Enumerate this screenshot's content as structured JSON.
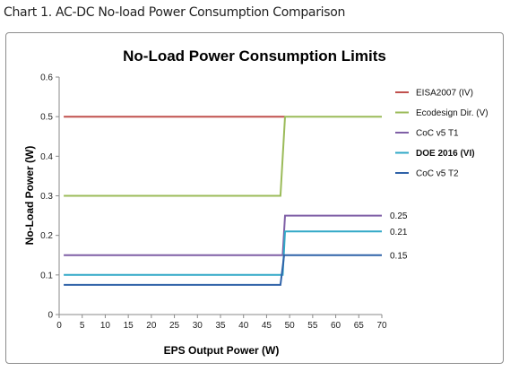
{
  "caption": "Chart 1. AC-DC No-load Power Consumption Comparison",
  "chart_data": {
    "type": "line",
    "title": "No-Load Power Consumption Limits",
    "xlabel": "EPS Output Power (W)",
    "ylabel": "No-Load Power (W)",
    "xlim": [
      0,
      70
    ],
    "ylim": [
      0,
      0.6
    ],
    "x_ticks": [
      "0",
      "5",
      "10",
      "15",
      "20",
      "25",
      "30",
      "35",
      "40",
      "45",
      "50",
      "55",
      "60",
      "65",
      "70"
    ],
    "y_ticks": [
      "0",
      "0.1",
      "0.2",
      "0.3",
      "0.4",
      "0.5",
      "0.6"
    ],
    "grid": false,
    "legend": "right",
    "series": [
      {
        "name": "EISA2007 (IV)",
        "color": "#c0504d",
        "bold": false,
        "points": [
          [
            1,
            0.5
          ],
          [
            49,
            0.5
          ]
        ]
      },
      {
        "name": "Ecodesign Dir.  (V)",
        "color": "#9bbb59",
        "bold": false,
        "points": [
          [
            1,
            0.3
          ],
          [
            48,
            0.3
          ],
          [
            49,
            0.5
          ],
          [
            70,
            0.5
          ]
        ]
      },
      {
        "name": "CoC v5 T1",
        "color": "#7f5fa6",
        "bold": false,
        "points": [
          [
            1,
            0.15
          ],
          [
            48.5,
            0.15
          ],
          [
            49,
            0.25
          ],
          [
            70,
            0.25
          ]
        ]
      },
      {
        "name": "DOE 2016 (VI)",
        "color": "#31a8c7",
        "bold": true,
        "points": [
          [
            1,
            0.1
          ],
          [
            48.5,
            0.1
          ],
          [
            49,
            0.21
          ],
          [
            70,
            0.21
          ]
        ]
      },
      {
        "name": "CoC v5 T2",
        "color": "#2f62a8",
        "bold": false,
        "points": [
          [
            1,
            0.075
          ],
          [
            48,
            0.075
          ],
          [
            48.8,
            0.15
          ],
          [
            70,
            0.15
          ]
        ]
      }
    ],
    "end_labels": [
      {
        "text": "0.25",
        "y": 0.25
      },
      {
        "text": "0.21",
        "y": 0.21
      },
      {
        "text": "0.15",
        "y": 0.15
      }
    ]
  }
}
